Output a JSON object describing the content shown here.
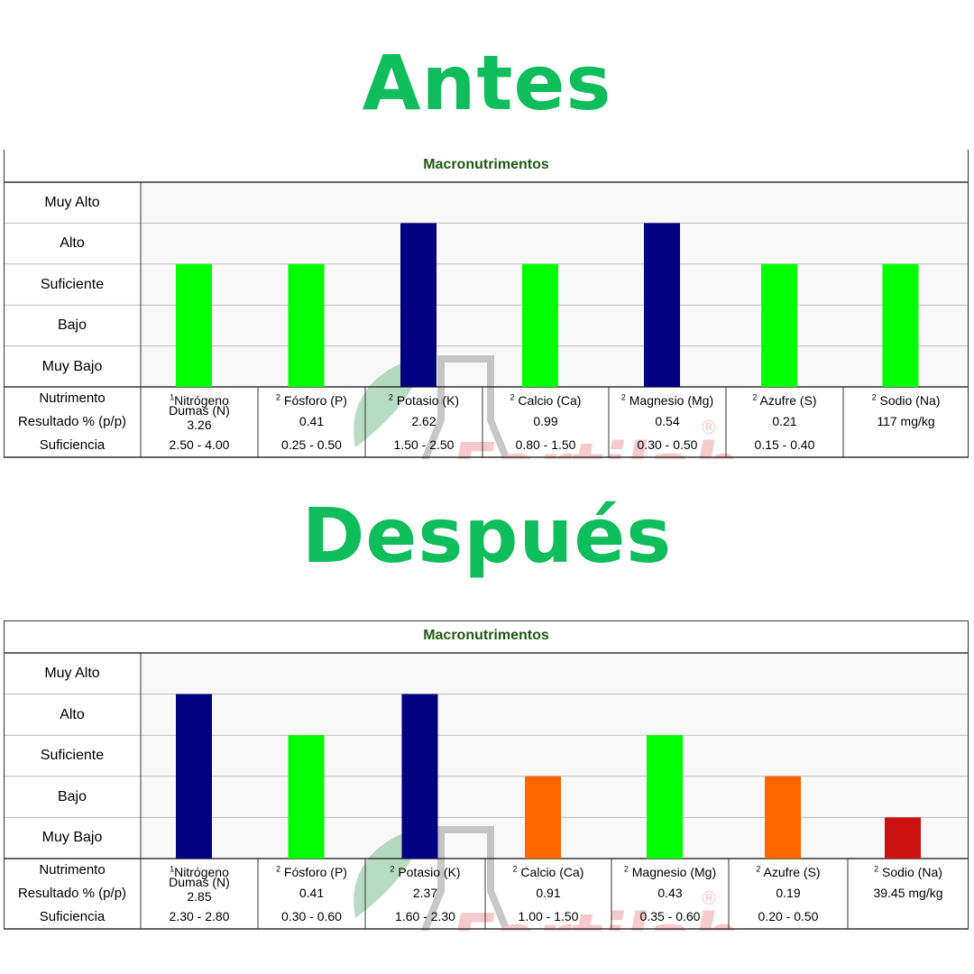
{
  "colors": {
    "heading": "#0fbd5c",
    "panel_title": "#1d5a12",
    "level_alto": "#000080",
    "level_suficiente": "#00ff00",
    "level_bajo": "#ff6600",
    "level_muy_bajo": "#cc1111",
    "watermark": "#f0a0a0"
  },
  "sections": [
    {
      "heading": "Antes",
      "panel_title": "Macronutrimentos",
      "watermark": "Fertilab",
      "levels": [
        "Muy Alto",
        "Alto",
        "Suficiente",
        "Bajo",
        "Muy Bajo"
      ],
      "row_labels": {
        "nutrient": "Nutrimento",
        "result": "Resultado % (p/p)",
        "sufficiency": "Suficiencia"
      },
      "nutrients": [
        {
          "sup": "1",
          "name": "Nitrógeno",
          "name2": "Dumas (N)",
          "result": "3.26",
          "sufficiency": "2.50 - 4.00"
        },
        {
          "sup": "2",
          "name": "Fósforo (P)",
          "name2": "",
          "result": "0.41",
          "sufficiency": "0.25 - 0.50"
        },
        {
          "sup": "2",
          "name": "Potasio (K)",
          "name2": "",
          "result": "2.62",
          "sufficiency": "1.50 - 2.50"
        },
        {
          "sup": "2",
          "name": "Calcio (Ca)",
          "name2": "",
          "result": "0.99",
          "sufficiency": "0.80 - 1.50"
        },
        {
          "sup": "2",
          "name": "Magnesio (Mg)",
          "name2": "",
          "result": "0.54",
          "sufficiency": "0.30 - 0.50"
        },
        {
          "sup": "2",
          "name": "Azufre (S)",
          "name2": "",
          "result": "0.21",
          "sufficiency": "0.15 - 0.40"
        },
        {
          "sup": "2",
          "name": "Sodio (Na)",
          "name2": "",
          "result": "117 mg/kg",
          "sufficiency": ""
        }
      ]
    },
    {
      "heading": "Después",
      "panel_title": "Macronutrimentos",
      "watermark": "Fertilab",
      "levels": [
        "Muy Alto",
        "Alto",
        "Suficiente",
        "Bajo",
        "Muy Bajo"
      ],
      "row_labels": {
        "nutrient": "Nutrimento",
        "result": "Resultado % (p/p)",
        "sufficiency": "Suficiencia"
      },
      "nutrients": [
        {
          "sup": "1",
          "name": "Nitrógeno",
          "name2": "Dumas (N)",
          "result": "2.85",
          "sufficiency": "2.30 - 2.80"
        },
        {
          "sup": "2",
          "name": "Fósforo (P)",
          "name2": "",
          "result": "0.41",
          "sufficiency": "0.30 - 0.60"
        },
        {
          "sup": "2",
          "name": "Potasio (K)",
          "name2": "",
          "result": "2.37",
          "sufficiency": "1.60 - 2.30"
        },
        {
          "sup": "2",
          "name": "Calcio (Ca)",
          "name2": "",
          "result": "0.91",
          "sufficiency": "1.00 - 1.50"
        },
        {
          "sup": "2",
          "name": "Magnesio (Mg)",
          "name2": "",
          "result": "0.43",
          "sufficiency": "0.35 - 0.60"
        },
        {
          "sup": "2",
          "name": "Azufre (S)",
          "name2": "",
          "result": "0.19",
          "sufficiency": "0.20 - 0.50"
        },
        {
          "sup": "2",
          "name": "Sodio (Na)",
          "name2": "",
          "result": "39.45 mg/kg",
          "sufficiency": ""
        }
      ]
    }
  ],
  "chart_data": [
    {
      "type": "bar",
      "title": "Macronutrimentos",
      "categories": [
        "Nitrógeno Dumas (N)",
        "Fósforo (P)",
        "Potasio (K)",
        "Calcio (Ca)",
        "Magnesio (Mg)",
        "Azufre (S)",
        "Sodio (Na)"
      ],
      "y_categories": [
        "Muy Bajo",
        "Bajo",
        "Suficiente",
        "Alto",
        "Muy Alto"
      ],
      "values": [
        3,
        3,
        4,
        3,
        4,
        3,
        3
      ],
      "value_labels": [
        "Suficiente",
        "Suficiente",
        "Alto",
        "Suficiente",
        "Alto",
        "Suficiente",
        "Suficiente"
      ],
      "ylim": [
        0,
        5
      ],
      "grid": true,
      "legend": "none"
    },
    {
      "type": "bar",
      "title": "Macronutrimentos",
      "categories": [
        "Nitrógeno Dumas (N)",
        "Fósforo (P)",
        "Potasio (K)",
        "Calcio (Ca)",
        "Magnesio (Mg)",
        "Azufre (S)",
        "Sodio (Na)"
      ],
      "y_categories": [
        "Muy Bajo",
        "Bajo",
        "Suficiente",
        "Alto",
        "Muy Alto"
      ],
      "values": [
        4,
        3,
        4,
        2,
        3,
        2,
        1
      ],
      "value_labels": [
        "Alto",
        "Suficiente",
        "Alto",
        "Bajo",
        "Suficiente",
        "Bajo",
        "Muy Bajo"
      ],
      "ylim": [
        0,
        5
      ],
      "grid": true,
      "legend": "none"
    }
  ]
}
